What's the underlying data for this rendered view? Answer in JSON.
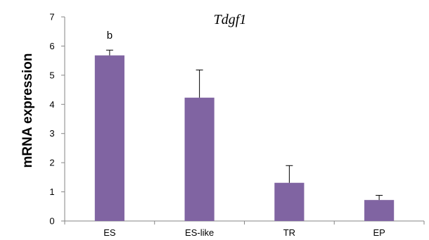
{
  "chart_data": {
    "type": "bar",
    "title": "Tdgf1",
    "xlabel": "",
    "ylabel": "mRNA expression",
    "categories": [
      "ES",
      "ES-like",
      "TR",
      "EP"
    ],
    "values": [
      5.68,
      4.23,
      1.31,
      0.72
    ],
    "error_upper": [
      0.18,
      0.95,
      0.59,
      0.16
    ],
    "annotations": [
      {
        "category": "ES",
        "text": "b"
      }
    ],
    "ylim": [
      0,
      7
    ],
    "yticks": [
      0,
      1,
      2,
      3,
      4,
      5,
      6,
      7
    ],
    "grid": false,
    "legend": "none",
    "bar_color": "#8064a2",
    "axis_color": "#868686"
  }
}
